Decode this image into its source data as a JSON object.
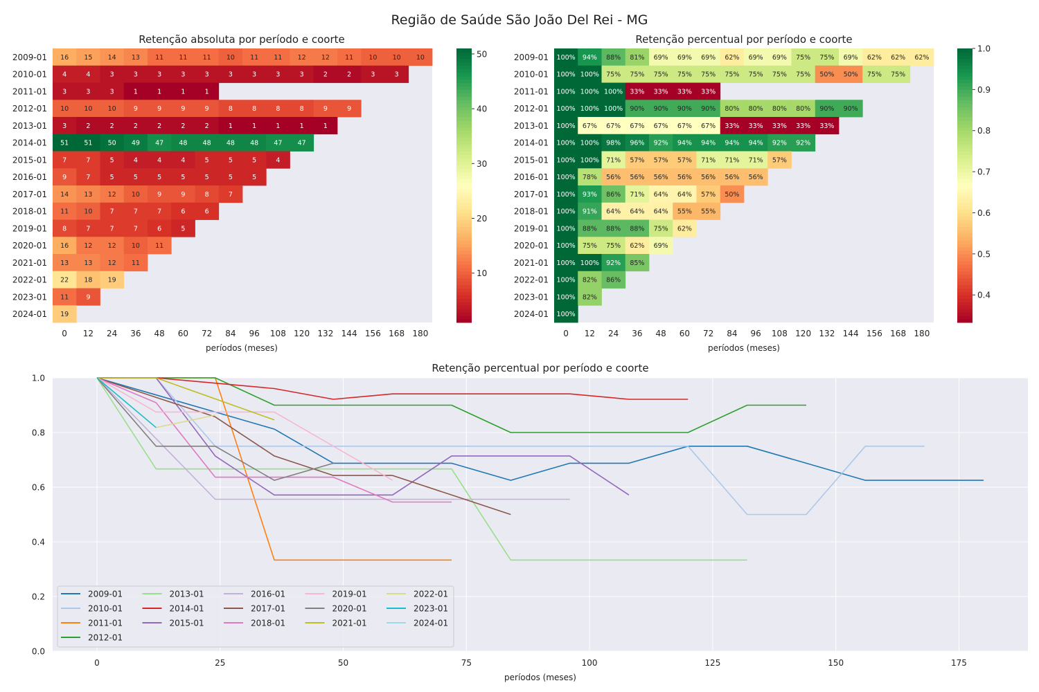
{
  "figure": {
    "suptitle": "Região de Saúde São João Del Rei - MG"
  },
  "chart_data": [
    {
      "type": "heatmap",
      "title": "Retenção absoluta por período e coorte",
      "xlabel": "períodos (meses)",
      "ylabel": "",
      "colormap": "RdYlGn",
      "vmin": 1,
      "vmax": 51,
      "colorbar_ticks": [
        10,
        20,
        30,
        40,
        50
      ],
      "x_ticks": [
        0,
        12,
        24,
        36,
        48,
        60,
        72,
        84,
        96,
        108,
        120,
        132,
        144,
        156,
        168,
        180
      ],
      "cohorts": [
        "2009-01",
        "2010-01",
        "2011-01",
        "2012-01",
        "2013-01",
        "2014-01",
        "2015-01",
        "2016-01",
        "2017-01",
        "2018-01",
        "2019-01",
        "2020-01",
        "2021-01",
        "2022-01",
        "2023-01",
        "2024-01"
      ],
      "values": [
        [
          16,
          15,
          14,
          13,
          11,
          11,
          11,
          10,
          11,
          11,
          12,
          12,
          11,
          10,
          10,
          10
        ],
        [
          4,
          4,
          3,
          3,
          3,
          3,
          3,
          3,
          3,
          3,
          3,
          2,
          2,
          3,
          3
        ],
        [
          3,
          3,
          3,
          1,
          1,
          1,
          1
        ],
        [
          10,
          10,
          10,
          9,
          9,
          9,
          9,
          8,
          8,
          8,
          8,
          9,
          9
        ],
        [
          3,
          2,
          2,
          2,
          2,
          2,
          2,
          1,
          1,
          1,
          1,
          1
        ],
        [
          51,
          51,
          50,
          49,
          47,
          48,
          48,
          48,
          48,
          47,
          47
        ],
        [
          7,
          7,
          5,
          4,
          4,
          4,
          5,
          5,
          5,
          4
        ],
        [
          9,
          7,
          5,
          5,
          5,
          5,
          5,
          5,
          5
        ],
        [
          14,
          13,
          12,
          10,
          9,
          9,
          8,
          7
        ],
        [
          11,
          10,
          7,
          7,
          7,
          6,
          6
        ],
        [
          8,
          7,
          7,
          7,
          6,
          5
        ],
        [
          16,
          12,
          12,
          10,
          11
        ],
        [
          13,
          13,
          12,
          11
        ],
        [
          22,
          18,
          19
        ],
        [
          11,
          9
        ],
        [
          19
        ]
      ]
    },
    {
      "type": "heatmap",
      "title": "Retenção percentual por período e coorte",
      "xlabel": "períodos (meses)",
      "ylabel": "",
      "colormap": "RdYlGn",
      "vmin": 0.333,
      "vmax": 1.0,
      "colorbar_ticks": [
        "0.4",
        "0.5",
        "0.6",
        "0.7",
        "0.8",
        "0.9",
        "1.0"
      ],
      "x_ticks": [
        0,
        12,
        24,
        36,
        48,
        60,
        72,
        84,
        96,
        108,
        120,
        132,
        144,
        156,
        168,
        180
      ],
      "cohorts": [
        "2009-01",
        "2010-01",
        "2011-01",
        "2012-01",
        "2013-01",
        "2014-01",
        "2015-01",
        "2016-01",
        "2017-01",
        "2018-01",
        "2019-01",
        "2020-01",
        "2021-01",
        "2022-01",
        "2023-01",
        "2024-01"
      ],
      "values": [
        [
          1.0,
          0.9375,
          0.875,
          0.8125,
          0.6875,
          0.6875,
          0.6875,
          0.625,
          0.6875,
          0.6875,
          0.75,
          0.75,
          0.6875,
          0.625,
          0.625,
          0.625
        ],
        [
          1.0,
          1.0,
          0.75,
          0.75,
          0.75,
          0.75,
          0.75,
          0.75,
          0.75,
          0.75,
          0.75,
          0.5,
          0.5,
          0.75,
          0.75
        ],
        [
          1.0,
          1.0,
          1.0,
          0.3333,
          0.3333,
          0.3333,
          0.3333
        ],
        [
          1.0,
          1.0,
          1.0,
          0.9,
          0.9,
          0.9,
          0.9,
          0.8,
          0.8,
          0.8,
          0.8,
          0.9,
          0.9
        ],
        [
          1.0,
          0.6667,
          0.6667,
          0.6667,
          0.6667,
          0.6667,
          0.6667,
          0.3333,
          0.3333,
          0.3333,
          0.3333,
          0.3333
        ],
        [
          1.0,
          1.0,
          0.9804,
          0.9608,
          0.9216,
          0.9412,
          0.9412,
          0.9412,
          0.9412,
          0.9216,
          0.9216
        ],
        [
          1.0,
          1.0,
          0.7143,
          0.5714,
          0.5714,
          0.5714,
          0.7143,
          0.7143,
          0.7143,
          0.5714
        ],
        [
          1.0,
          0.7778,
          0.5556,
          0.5556,
          0.5556,
          0.5556,
          0.5556,
          0.5556,
          0.5556
        ],
        [
          1.0,
          0.9286,
          0.8571,
          0.7143,
          0.6429,
          0.6429,
          0.5714,
          0.5
        ],
        [
          1.0,
          0.9091,
          0.6364,
          0.6364,
          0.6364,
          0.5455,
          0.5455
        ],
        [
          1.0,
          0.875,
          0.875,
          0.875,
          0.75,
          0.625
        ],
        [
          1.0,
          0.75,
          0.75,
          0.625,
          0.6875
        ],
        [
          1.0,
          1.0,
          0.9231,
          0.8462
        ],
        [
          1.0,
          0.8182,
          0.8636
        ],
        [
          1.0,
          0.8182
        ],
        [
          1.0
        ]
      ],
      "labels": [
        [
          "100%",
          "94%",
          "88%",
          "81%",
          "69%",
          "69%",
          "69%",
          "62%",
          "69%",
          "69%",
          "75%",
          "75%",
          "69%",
          "62%",
          "62%",
          "62%"
        ],
        [
          "100%",
          "100%",
          "75%",
          "75%",
          "75%",
          "75%",
          "75%",
          "75%",
          "75%",
          "75%",
          "75%",
          "50%",
          "50%",
          "75%",
          "75%"
        ],
        [
          "100%",
          "100%",
          "100%",
          "33%",
          "33%",
          "33%",
          "33%"
        ],
        [
          "100%",
          "100%",
          "100%",
          "90%",
          "90%",
          "90%",
          "90%",
          "80%",
          "80%",
          "80%",
          "80%",
          "90%",
          "90%"
        ],
        [
          "100%",
          "67%",
          "67%",
          "67%",
          "67%",
          "67%",
          "67%",
          "33%",
          "33%",
          "33%",
          "33%",
          "33%"
        ],
        [
          "100%",
          "100%",
          "98%",
          "96%",
          "92%",
          "94%",
          "94%",
          "94%",
          "94%",
          "92%",
          "92%"
        ],
        [
          "100%",
          "100%",
          "71%",
          "57%",
          "57%",
          "57%",
          "71%",
          "71%",
          "71%",
          "57%"
        ],
        [
          "100%",
          "78%",
          "56%",
          "56%",
          "56%",
          "56%",
          "56%",
          "56%",
          "56%"
        ],
        [
          "100%",
          "93%",
          "86%",
          "71%",
          "64%",
          "64%",
          "57%",
          "50%"
        ],
        [
          "100%",
          "91%",
          "64%",
          "64%",
          "64%",
          "55%",
          "55%"
        ],
        [
          "100%",
          "88%",
          "88%",
          "88%",
          "75%",
          "62%"
        ],
        [
          "100%",
          "75%",
          "75%",
          "62%",
          "69%"
        ],
        [
          "100%",
          "100%",
          "92%",
          "85%"
        ],
        [
          "100%",
          "82%",
          "86%"
        ],
        [
          "100%",
          "82%"
        ],
        [
          "100%"
        ]
      ]
    },
    {
      "type": "line",
      "title": "Retenção percentual por período e coorte",
      "xlabel": "períodos (meses)",
      "ylabel": "",
      "xlim": [
        -9,
        189
      ],
      "ylim": [
        0.0,
        1.0
      ],
      "x_ticks": [
        0,
        25,
        50,
        75,
        100,
        125,
        150,
        175
      ],
      "y_ticks": [
        "0.0",
        "0.2",
        "0.4",
        "0.6",
        "0.8",
        "1.0"
      ],
      "grid": true,
      "legend_position": "lower-left",
      "x_step": 12,
      "colors": [
        "#1f77b4",
        "#aec7e8",
        "#ff7f0e",
        "#2ca02c",
        "#98df8a",
        "#d62728",
        "#9467bd",
        "#c5b0d5",
        "#8c564b",
        "#e377c2",
        "#f7b6d2",
        "#7f7f7f",
        "#bcbd22",
        "#dbdb8d",
        "#17becf",
        "#9edae5"
      ],
      "series_names": [
        "2009-01",
        "2010-01",
        "2011-01",
        "2012-01",
        "2013-01",
        "2014-01",
        "2015-01",
        "2016-01",
        "2017-01",
        "2018-01",
        "2019-01",
        "2020-01",
        "2021-01",
        "2022-01",
        "2023-01",
        "2024-01"
      ],
      "legend_order": [
        "2009-01",
        "2013-01",
        "2016-01",
        "2019-01",
        "2022-01",
        "2010-01",
        "2014-01",
        "2017-01",
        "2020-01",
        "2023-01",
        "2011-01",
        "2015-01",
        "2018-01",
        "2021-01",
        "2024-01",
        "2012-01"
      ]
    }
  ]
}
